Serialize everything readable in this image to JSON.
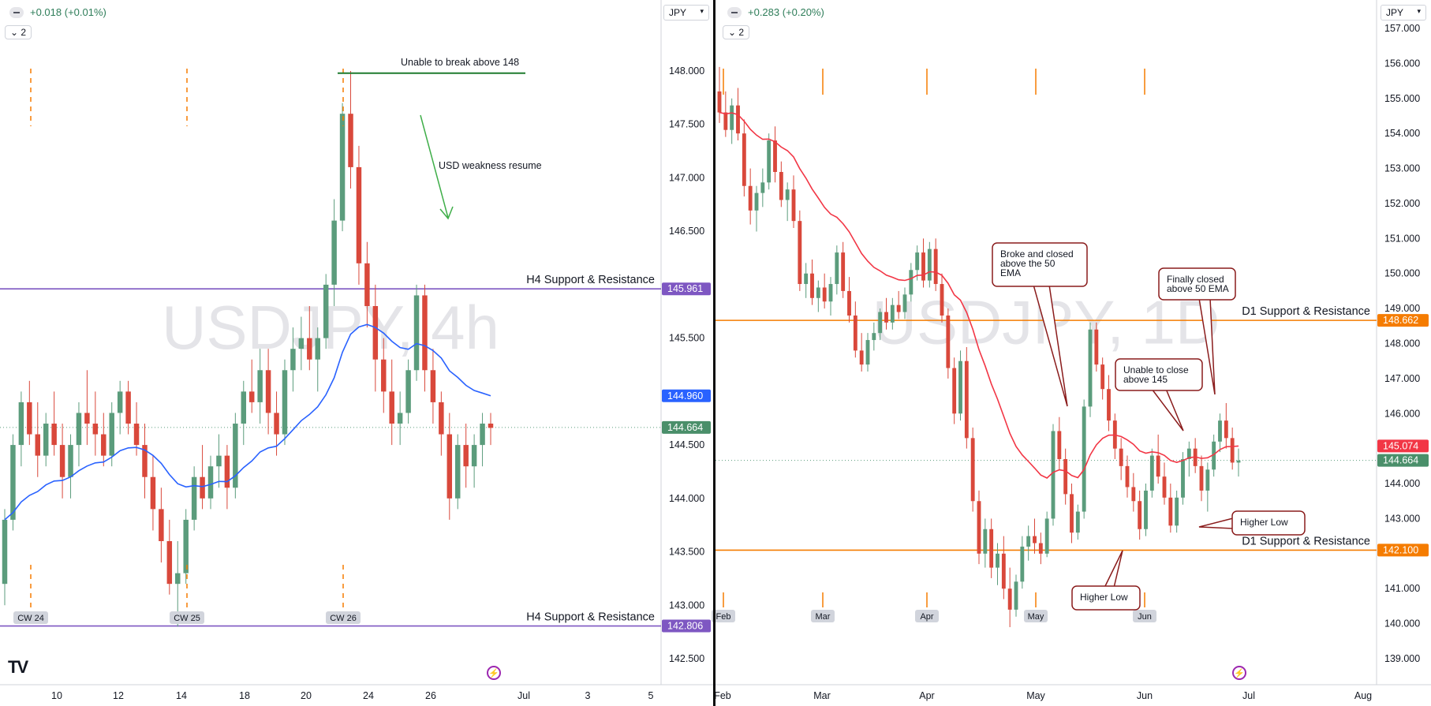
{
  "left_panel": {
    "symbol_watermark": "USDJPY, 4h",
    "change_text": "+0.018 (+0.01%)",
    "indicator_count": "2",
    "currency": "JPY",
    "price_axis_ticks": [
      "148.000",
      "147.500",
      "147.000",
      "146.500",
      "145.500",
      "144.500",
      "144.000",
      "143.500",
      "143.000",
      "142.500"
    ],
    "time_axis_ticks": [
      "10",
      "12",
      "14",
      "18",
      "20",
      "24",
      "26",
      "Jul",
      "3",
      "5"
    ],
    "week_labels": [
      "CW 24",
      "CW 25",
      "CW 26"
    ],
    "price_labels": [
      {
        "text": "145.961",
        "color": "#7e57c2"
      },
      {
        "text": "144.960",
        "color": "#2962ff"
      },
      {
        "text": "144.664",
        "color": "#4a8f6a"
      },
      {
        "text": "142.806",
        "color": "#7e57c2"
      }
    ],
    "annotations": [
      "Unable to break above 148",
      "USD weakness resume"
    ],
    "level_labels": [
      "H4 Support & Resistance",
      "H4 Support & Resistance"
    ]
  },
  "right_panel": {
    "symbol_watermark": "USDJPY, 1D",
    "change_text": "+0.283 (+0.20%)",
    "indicator_count": "2",
    "currency": "JPY",
    "price_axis_ticks": [
      "157.000",
      "156.000",
      "155.000",
      "154.000",
      "153.000",
      "152.000",
      "151.000",
      "150.000",
      "149.000",
      "148.000",
      "147.000",
      "146.000",
      "144.000",
      "143.000",
      "141.000",
      "140.000",
      "139.000"
    ],
    "time_axis_ticks": [
      "Feb",
      "Mar",
      "Apr",
      "May",
      "Jun",
      "Jul",
      "Aug"
    ],
    "month_labels": [
      "Feb",
      "Mar",
      "Apr",
      "May",
      "Jun"
    ],
    "price_labels": [
      {
        "text": "148.662",
        "color": "#f57c00"
      },
      {
        "text": "145.074",
        "color": "#f23645"
      },
      {
        "text": "144.664",
        "color": "#4a8f6a"
      },
      {
        "text": "142.100",
        "color": "#f57c00"
      }
    ],
    "callouts": [
      {
        "text": "Broke and closed above the 50 EMA"
      },
      {
        "text": "Finally closed above 50 EMA"
      },
      {
        "text": "Unable to close above 145"
      },
      {
        "text": "Higher Low"
      },
      {
        "text": "Higher Low"
      }
    ],
    "level_labels": [
      "D1 Support & Resistance",
      "D1 Support & Resistance"
    ]
  },
  "colors": {
    "up": "#5b9c7c",
    "down": "#d9483b",
    "ema_4h": "#2962ff",
    "ema_1d": "#f23645",
    "level_4h": "#7e57c2",
    "level_1d": "#f57c00",
    "annotation_green": "#1e7b2e"
  },
  "chart_data": [
    {
      "type": "candlestick",
      "title": "USDJPY, 4h",
      "ylim": [
        142.3,
        148.3
      ],
      "levels": [
        145.961,
        142.806
      ],
      "ema_last": 144.96,
      "last_price": 144.664,
      "candles": [
        [
          143.2,
          143.9,
          143.0,
          143.8
        ],
        [
          143.8,
          144.6,
          143.7,
          144.5
        ],
        [
          144.5,
          145.0,
          144.3,
          144.9
        ],
        [
          144.9,
          145.1,
          144.5,
          144.6
        ],
        [
          144.6,
          144.9,
          144.2,
          144.4
        ],
        [
          144.4,
          144.8,
          144.3,
          144.7
        ],
        [
          144.7,
          145.0,
          144.4,
          144.5
        ],
        [
          144.5,
          144.7,
          144.0,
          144.2
        ],
        [
          144.2,
          144.6,
          144.0,
          144.5
        ],
        [
          144.5,
          144.9,
          144.3,
          144.8
        ],
        [
          144.8,
          145.2,
          144.5,
          144.7
        ],
        [
          144.7,
          145.0,
          144.4,
          144.6
        ],
        [
          144.6,
          144.8,
          144.3,
          144.4
        ],
        [
          144.4,
          144.9,
          144.3,
          144.8
        ],
        [
          144.8,
          145.1,
          144.6,
          145.0
        ],
        [
          145.0,
          145.1,
          144.6,
          144.7
        ],
        [
          144.7,
          144.9,
          144.4,
          144.5
        ],
        [
          144.5,
          144.7,
          144.0,
          144.2
        ],
        [
          144.2,
          144.4,
          143.7,
          143.9
        ],
        [
          143.9,
          144.1,
          143.4,
          143.6
        ],
        [
          143.6,
          143.8,
          143.1,
          143.2
        ],
        [
          143.2,
          143.6,
          142.8,
          143.3
        ],
        [
          143.3,
          143.9,
          143.2,
          143.8
        ],
        [
          143.8,
          144.3,
          143.7,
          144.2
        ],
        [
          144.2,
          144.5,
          143.9,
          144.0
        ],
        [
          144.0,
          144.4,
          143.9,
          144.3
        ],
        [
          144.3,
          144.6,
          144.1,
          144.4
        ],
        [
          144.4,
          144.5,
          143.9,
          144.1
        ],
        [
          144.1,
          144.8,
          144.0,
          144.7
        ],
        [
          144.7,
          145.1,
          144.5,
          145.0
        ],
        [
          145.0,
          145.3,
          144.8,
          144.9
        ],
        [
          144.9,
          145.4,
          144.7,
          145.2
        ],
        [
          145.2,
          145.4,
          144.6,
          144.8
        ],
        [
          144.8,
          145.0,
          144.4,
          144.6
        ],
        [
          144.6,
          145.3,
          144.5,
          145.2
        ],
        [
          145.2,
          145.6,
          145.0,
          145.4
        ],
        [
          145.4,
          145.7,
          145.2,
          145.5
        ],
        [
          145.5,
          145.8,
          145.2,
          145.3
        ],
        [
          145.3,
          145.6,
          145.0,
          145.5
        ],
        [
          145.5,
          146.1,
          145.4,
          146.0
        ],
        [
          146.0,
          146.8,
          145.8,
          146.6
        ],
        [
          146.6,
          147.7,
          146.5,
          147.6
        ],
        [
          147.6,
          148.0,
          146.9,
          147.1
        ],
        [
          147.1,
          147.3,
          146.0,
          146.2
        ],
        [
          146.2,
          146.4,
          145.6,
          145.8
        ],
        [
          145.8,
          146.0,
          145.0,
          145.3
        ],
        [
          145.3,
          145.5,
          144.8,
          145.0
        ],
        [
          145.0,
          145.3,
          144.5,
          144.7
        ],
        [
          144.7,
          145.0,
          144.5,
          144.8
        ],
        [
          144.8,
          145.3,
          144.7,
          145.2
        ],
        [
          145.2,
          146.0,
          145.1,
          145.9
        ],
        [
          145.9,
          146.0,
          145.0,
          145.2
        ],
        [
          145.2,
          145.4,
          144.7,
          144.9
        ],
        [
          144.9,
          145.0,
          144.4,
          144.6
        ],
        [
          144.6,
          144.8,
          143.8,
          144.0
        ],
        [
          144.0,
          144.6,
          143.9,
          144.5
        ],
        [
          144.5,
          144.7,
          144.1,
          144.3
        ],
        [
          144.3,
          144.6,
          144.1,
          144.5
        ],
        [
          144.5,
          144.8,
          144.3,
          144.7
        ],
        [
          144.7,
          144.8,
          144.5,
          144.66
        ]
      ],
      "week_markers": [
        "CW 24",
        "CW 25",
        "CW 26"
      ]
    },
    {
      "type": "candlestick",
      "title": "USDJPY, 1D",
      "ylim": [
        138.5,
        157.5
      ],
      "levels": [
        148.662,
        142.1
      ],
      "ema_last": 145.074,
      "last_price": 144.664,
      "candles": [
        [
          155.2,
          155.9,
          154.3,
          154.6
        ],
        [
          154.6,
          155.2,
          153.9,
          154.1
        ],
        [
          154.1,
          155.0,
          153.7,
          154.8
        ],
        [
          154.8,
          155.3,
          153.8,
          154.0
        ],
        [
          154.0,
          154.4,
          152.2,
          152.5
        ],
        [
          152.5,
          153.0,
          151.4,
          151.8
        ],
        [
          151.8,
          152.5,
          151.2,
          152.3
        ],
        [
          152.3,
          153.0,
          151.9,
          152.6
        ],
        [
          152.6,
          154.0,
          152.4,
          153.8
        ],
        [
          153.8,
          154.2,
          152.6,
          152.9
        ],
        [
          152.9,
          153.2,
          151.9,
          152.1
        ],
        [
          152.1,
          152.6,
          151.5,
          152.4
        ],
        [
          152.4,
          152.8,
          151.3,
          151.5
        ],
        [
          151.5,
          151.8,
          149.5,
          149.7
        ],
        [
          149.7,
          150.3,
          149.3,
          150.0
        ],
        [
          150.0,
          150.4,
          149.1,
          149.3
        ],
        [
          149.3,
          149.8,
          148.9,
          149.6
        ],
        [
          149.6,
          150.0,
          149.0,
          149.2
        ],
        [
          149.2,
          149.9,
          148.8,
          149.7
        ],
        [
          149.7,
          150.8,
          149.4,
          150.6
        ],
        [
          150.6,
          150.9,
          149.3,
          149.5
        ],
        [
          149.5,
          149.9,
          148.6,
          148.8
        ],
        [
          148.8,
          149.2,
          147.6,
          147.8
        ],
        [
          147.8,
          148.3,
          147.2,
          147.4
        ],
        [
          147.4,
          148.3,
          147.2,
          148.1
        ],
        [
          148.1,
          148.6,
          147.8,
          148.3
        ],
        [
          148.3,
          149.0,
          148.1,
          148.9
        ],
        [
          148.9,
          149.3,
          148.4,
          148.6
        ],
        [
          148.6,
          149.3,
          148.4,
          149.1
        ],
        [
          149.1,
          149.5,
          148.7,
          148.9
        ],
        [
          148.9,
          149.6,
          148.7,
          149.4
        ],
        [
          149.4,
          150.3,
          149.2,
          150.1
        ],
        [
          150.1,
          150.8,
          149.8,
          150.6
        ],
        [
          150.6,
          151.0,
          149.6,
          149.8
        ],
        [
          149.8,
          150.9,
          149.6,
          150.7
        ],
        [
          150.7,
          151.0,
          149.5,
          149.7
        ],
        [
          149.7,
          150.0,
          148.6,
          148.8
        ],
        [
          148.8,
          149.0,
          147.0,
          147.3
        ],
        [
          147.3,
          147.6,
          145.7,
          146.0
        ],
        [
          146.0,
          147.8,
          145.8,
          147.5
        ],
        [
          147.5,
          147.9,
          145.0,
          145.3
        ],
        [
          145.3,
          145.6,
          143.2,
          143.5
        ],
        [
          143.5,
          143.8,
          141.7,
          142.0
        ],
        [
          142.0,
          143.0,
          141.6,
          142.7
        ],
        [
          142.7,
          143.0,
          141.3,
          141.6
        ],
        [
          141.6,
          142.3,
          141.1,
          142.0
        ],
        [
          142.0,
          142.5,
          140.7,
          141.0
        ],
        [
          141.0,
          141.6,
          139.9,
          140.4
        ],
        [
          140.4,
          141.4,
          140.2,
          141.2
        ],
        [
          141.2,
          142.5,
          141.0,
          142.2
        ],
        [
          142.2,
          142.8,
          141.8,
          142.5
        ],
        [
          142.5,
          143.0,
          142.0,
          142.3
        ],
        [
          142.3,
          142.6,
          141.7,
          142.0
        ],
        [
          142.0,
          143.2,
          141.9,
          143.0
        ],
        [
          143.0,
          145.7,
          142.8,
          145.5
        ],
        [
          145.5,
          145.9,
          144.4,
          144.7
        ],
        [
          144.7,
          145.0,
          143.4,
          143.7
        ],
        [
          143.7,
          144.0,
          142.3,
          142.6
        ],
        [
          142.6,
          143.4,
          142.4,
          143.2
        ],
        [
          143.2,
          146.4,
          143.0,
          146.2
        ],
        [
          146.2,
          148.6,
          145.9,
          148.4
        ],
        [
          148.4,
          148.6,
          147.2,
          147.4
        ],
        [
          147.4,
          147.6,
          146.4,
          146.7
        ],
        [
          146.7,
          147.1,
          145.5,
          145.8
        ],
        [
          145.8,
          146.0,
          144.7,
          145.0
        ],
        [
          145.0,
          145.3,
          144.1,
          144.5
        ],
        [
          144.5,
          144.8,
          143.6,
          143.9
        ],
        [
          143.9,
          144.3,
          143.2,
          143.5
        ],
        [
          143.5,
          143.8,
          142.4,
          142.7
        ],
        [
          142.7,
          144.0,
          142.5,
          143.8
        ],
        [
          143.8,
          145.0,
          143.6,
          144.8
        ],
        [
          144.8,
          145.4,
          144.0,
          144.2
        ],
        [
          144.2,
          144.6,
          143.4,
          143.6
        ],
        [
          143.6,
          144.0,
          142.6,
          142.8
        ],
        [
          142.8,
          143.8,
          142.6,
          143.6
        ],
        [
          143.6,
          144.9,
          143.4,
          144.7
        ],
        [
          144.7,
          145.2,
          144.2,
          145.0
        ],
        [
          145.0,
          145.3,
          144.3,
          144.5
        ],
        [
          144.5,
          144.8,
          143.5,
          143.8
        ],
        [
          143.8,
          144.6,
          143.2,
          144.4
        ],
        [
          144.4,
          145.4,
          144.2,
          145.2
        ],
        [
          145.2,
          146.0,
          144.9,
          145.8
        ],
        [
          145.8,
          146.3,
          145.0,
          145.3
        ],
        [
          145.3,
          145.6,
          144.4,
          144.6
        ],
        [
          144.6,
          145.0,
          144.2,
          144.66
        ]
      ],
      "month_markers": [
        "Feb",
        "Mar",
        "Apr",
        "May",
        "Jun"
      ]
    }
  ]
}
